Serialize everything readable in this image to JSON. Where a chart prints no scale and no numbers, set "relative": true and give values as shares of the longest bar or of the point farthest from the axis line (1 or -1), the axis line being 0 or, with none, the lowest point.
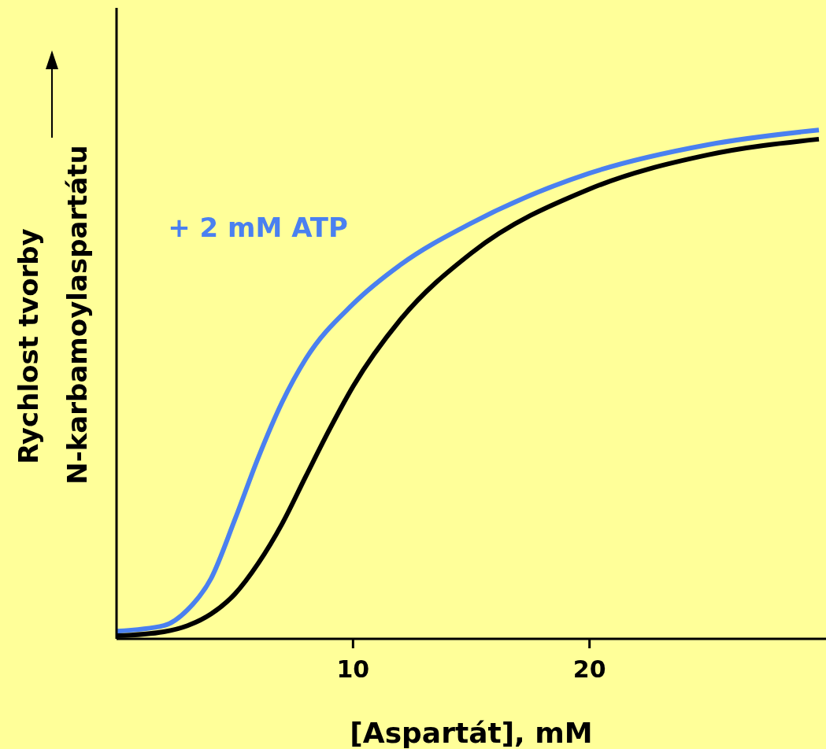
{
  "chart_data": {
    "type": "line",
    "relative": true,
    "xlabel": "[Aspartát], mM",
    "ylabel": "Rychlost tvorby\nN-karbamoylaspartátu",
    "xlim": [
      0,
      30
    ],
    "xticks": [
      10,
      20
    ],
    "grid": false,
    "legend": false,
    "marker": "none",
    "line_style": "solid",
    "series": [
      {
        "name": "+ 2 mM ATP",
        "color": "#4a80f0",
        "x": [
          0,
          2,
          3,
          4,
          5,
          6,
          7,
          8,
          10,
          12,
          15,
          20,
          25,
          29.7
        ],
        "values": [
          0.015,
          0.026,
          0.057,
          0.119,
          0.234,
          0.357,
          0.465,
          0.55,
          0.658,
          0.735,
          0.817,
          0.915,
          0.971,
          1
        ]
      },
      {
        "color": "#000000",
        "x": [
          0,
          2,
          3,
          4,
          5,
          6,
          7,
          8,
          9,
          10,
          12,
          15,
          20,
          25,
          29.7
        ],
        "values": [
          0.006,
          0.014,
          0.026,
          0.049,
          0.088,
          0.149,
          0.226,
          0.319,
          0.411,
          0.496,
          0.627,
          0.758,
          0.884,
          0.951,
          0.982
        ]
      }
    ]
  }
}
